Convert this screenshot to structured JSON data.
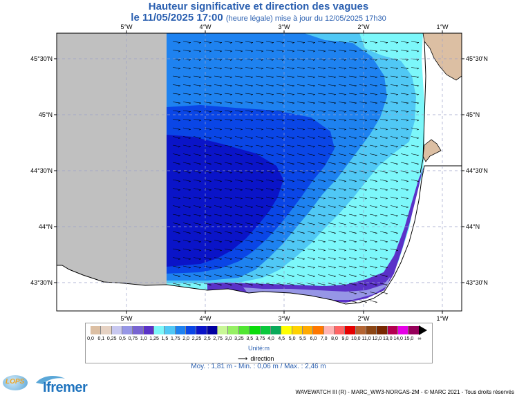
{
  "title": {
    "line1": "Hauteur significative et direction des vagues",
    "line2_main": "le 11/05/2025 17:00",
    "line2_note": "(heure légale) mise à jour du 12/05/2025 17h30"
  },
  "map": {
    "lon_ticks": [
      "5°W",
      "4°W",
      "3°W",
      "2°W",
      "1°W"
    ],
    "lat_ticks": [
      "45°30'N",
      "45°N",
      "44°30'N",
      "44°N",
      "43°30'N"
    ],
    "colors": {
      "land": "#dcbfa3",
      "no_data": "#c0c0c0",
      "deep_blue": "#0a14c8",
      "mid_blue": "#0a46e6",
      "blue": "#1e82f0",
      "light_blue": "#50c8f5",
      "cyan": "#7cf7fa",
      "purple": "#5a32c8",
      "lavender": "#9696e6"
    }
  },
  "legend": {
    "labels": [
      "0,0",
      "0,1",
      "0,25",
      "0,5",
      "0,75",
      "1,0",
      "1,25",
      "1,5",
      "1,75",
      "2,0",
      "2,25",
      "2,5",
      "2,75",
      "3,0",
      "3,25",
      "3,5",
      "3,75",
      "4,0",
      "4,5",
      "5,0",
      "5,5",
      "6,0",
      "7,0",
      "8,0",
      "9,0",
      "10,0",
      "11,0",
      "12,0",
      "13,0",
      "14,0",
      "15,0",
      "∞"
    ],
    "colors": [
      "#dcbfa3",
      "#e6d2c3",
      "#c8c8f0",
      "#9696e6",
      "#7864d2",
      "#5a32c8",
      "#7cf7fa",
      "#50c8f5",
      "#1e82f0",
      "#0a46e6",
      "#0a14c8",
      "#0000a0",
      "#c8f796",
      "#96f064",
      "#50e632",
      "#0adc0a",
      "#0ac83c",
      "#0aaa5a",
      "#ffff00",
      "#ffd200",
      "#ffaa00",
      "#ff7800",
      "#ffb4b4",
      "#ff6464",
      "#e60000",
      "#b46432",
      "#8c4614",
      "#782800",
      "#b40050",
      "#e600e6",
      "#96005a"
    ],
    "unit": "Unité:m",
    "direction": "direction"
  },
  "stats": "Moy. : 1,81 m   -   Min. : 0,06 m / Max. : 2,46 m",
  "footer": "WAVEWATCH III (R) - MARC_WW3-NORGAS-2M - © MARC 2021 - Tous droits réservés",
  "logos": {
    "lops": "LOPS",
    "ifremer": "Ifremer"
  }
}
